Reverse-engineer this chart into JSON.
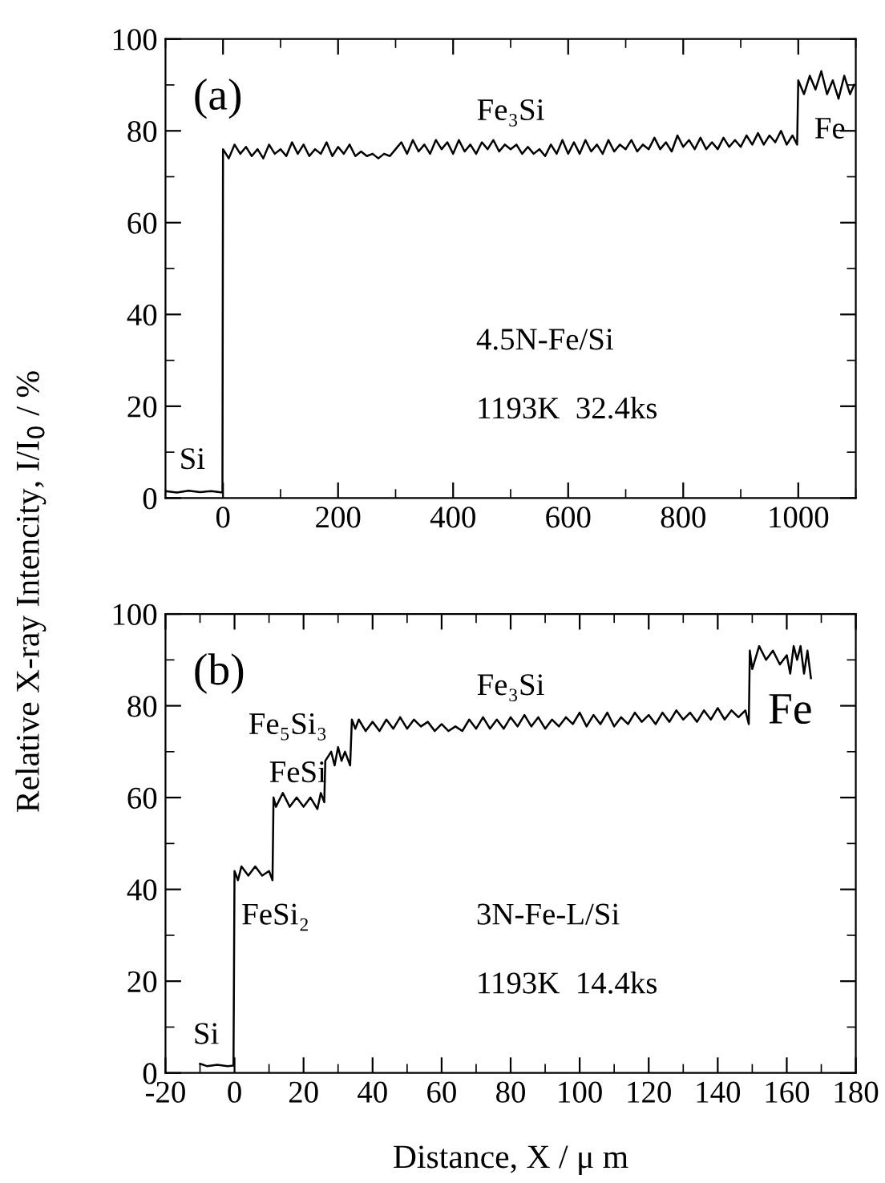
{
  "chart_data": [
    {
      "type": "line",
      "ylabel": "Relative X-ray Intencity, I/I$_{0}$ / %",
      "xlim": [
        -100,
        1100
      ],
      "xticks": [
        0,
        200,
        400,
        600,
        800,
        1000
      ],
      "ylim": [
        0,
        100
      ],
      "yticks": [
        0,
        20,
        40,
        60,
        80,
        100
      ],
      "grid": false,
      "legend": false,
      "marker": "none",
      "line_style": "solid",
      "annotations": [
        "(a)",
        "4.5N-Fe/Si",
        "1193K  32.4ks",
        "Si",
        "Fe₃Si",
        "Fe"
      ],
      "series": [
        {
          "color": "#000000",
          "x": [
            -100,
            -80,
            -60,
            -40,
            -20,
            -1,
            0,
            10,
            20,
            30,
            40,
            50,
            60,
            70,
            80,
            90,
            100,
            110,
            120,
            130,
            140,
            150,
            160,
            170,
            180,
            190,
            200,
            210,
            220,
            230,
            240,
            250,
            260,
            270,
            280,
            290,
            300,
            310,
            320,
            330,
            340,
            350,
            360,
            370,
            380,
            390,
            400,
            410,
            420,
            430,
            440,
            450,
            460,
            470,
            480,
            490,
            500,
            510,
            520,
            530,
            540,
            550,
            560,
            570,
            580,
            590,
            600,
            610,
            620,
            630,
            640,
            650,
            660,
            670,
            680,
            690,
            700,
            710,
            720,
            730,
            740,
            750,
            760,
            770,
            780,
            790,
            800,
            810,
            820,
            830,
            840,
            850,
            860,
            870,
            880,
            890,
            900,
            910,
            920,
            930,
            940,
            950,
            960,
            970,
            980,
            990,
            998,
            1000,
            1010,
            1020,
            1030,
            1040,
            1050,
            1060,
            1070,
            1080,
            1090,
            1097
          ],
          "values": [
            1.5,
            1.2,
            1.6,
            1.3,
            1.5,
            1.2,
            76,
            74,
            77,
            75,
            76.5,
            74.5,
            76,
            74,
            77,
            75,
            76,
            74.5,
            77.5,
            75,
            77,
            74.5,
            76,
            75,
            77.5,
            74.5,
            76.5,
            75,
            77,
            74.5,
            75.5,
            74.5,
            75,
            74,
            75,
            74.5,
            76,
            77.5,
            75,
            78,
            75.5,
            77,
            75,
            78,
            76,
            77.5,
            75,
            78,
            75.5,
            77,
            75,
            77.5,
            76,
            78,
            75.5,
            77,
            76,
            77,
            75,
            76.5,
            75,
            76,
            74.5,
            77,
            75,
            78,
            75,
            77.5,
            75,
            78,
            75.5,
            77,
            75,
            78,
            75.5,
            77,
            76,
            78,
            75.5,
            77,
            76,
            78.5,
            76,
            77.5,
            75.5,
            79,
            76.5,
            78,
            76,
            78.5,
            76,
            77.5,
            76,
            78.5,
            76.5,
            78,
            76.5,
            79,
            77,
            79.5,
            77,
            79,
            77.5,
            80,
            77,
            79,
            77,
            91,
            88,
            92,
            89,
            93,
            88,
            91,
            87,
            92,
            88,
            90
          ]
        }
      ]
    },
    {
      "type": "line",
      "xlabel": "Distance, X / μ m",
      "xlim": [
        -20,
        180
      ],
      "xticks": [
        -20,
        0,
        20,
        40,
        60,
        80,
        100,
        120,
        140,
        160,
        180
      ],
      "ylim": [
        0,
        100
      ],
      "yticks": [
        0,
        20,
        40,
        60,
        80,
        100
      ],
      "grid": false,
      "legend": false,
      "marker": "none",
      "line_style": "solid",
      "annotations": [
        "(b)",
        "3N-Fe-L/Si",
        "1193K  14.4ks",
        "Si",
        "FeSi₂",
        "FeSi",
        "Fe₅Si₃",
        "Fe₃Si",
        "Fe"
      ],
      "series": [
        {
          "color": "#000000",
          "x": [
            -10,
            -8,
            -5,
            -2,
            -0.3,
            0,
            1,
            2,
            4,
            6,
            8,
            10,
            11,
            11.3,
            12,
            14,
            16,
            18,
            20,
            22,
            24,
            25,
            26,
            26.3,
            28,
            29,
            30,
            31,
            32,
            33.5,
            34,
            35,
            36,
            38,
            40,
            42,
            44,
            46,
            48,
            50,
            52,
            54,
            56,
            58,
            60,
            62,
            64,
            66,
            68,
            70,
            72,
            74,
            76,
            78,
            80,
            82,
            84,
            86,
            88,
            90,
            92,
            94,
            96,
            98,
            100,
            102,
            104,
            106,
            108,
            110,
            112,
            114,
            116,
            118,
            120,
            122,
            124,
            126,
            128,
            130,
            132,
            134,
            136,
            138,
            140,
            142,
            144,
            146,
            148,
            149,
            149.3,
            150,
            152,
            154,
            156,
            158,
            160,
            161,
            162,
            163,
            164,
            165,
            166,
            167
          ],
          "values": [
            2,
            1.5,
            1.8,
            1.5,
            1.6,
            44,
            42,
            45,
            43,
            45,
            43,
            44,
            42,
            60,
            58,
            61,
            58,
            60,
            58,
            60,
            57.5,
            61,
            59,
            68,
            70,
            67,
            71,
            68,
            70,
            67,
            77,
            75,
            77,
            74.5,
            76.5,
            74.5,
            77,
            75,
            77.5,
            75,
            77,
            75.5,
            76.5,
            74.5,
            76,
            74.5,
            75.5,
            74.5,
            77,
            75,
            77.5,
            75,
            77,
            75,
            77.5,
            75.5,
            78,
            75.5,
            77.5,
            75,
            77,
            75.5,
            77.5,
            76,
            78.5,
            75.5,
            78,
            76,
            78.5,
            75.5,
            77.5,
            76,
            78.5,
            76.5,
            78,
            76,
            78.5,
            76.5,
            79,
            77,
            78.5,
            76.5,
            79,
            77,
            79.5,
            77,
            79,
            77.5,
            79,
            76,
            92,
            88,
            93,
            90,
            92,
            89,
            91,
            87,
            93,
            90,
            93,
            87,
            92,
            86
          ]
        }
      ]
    }
  ]
}
